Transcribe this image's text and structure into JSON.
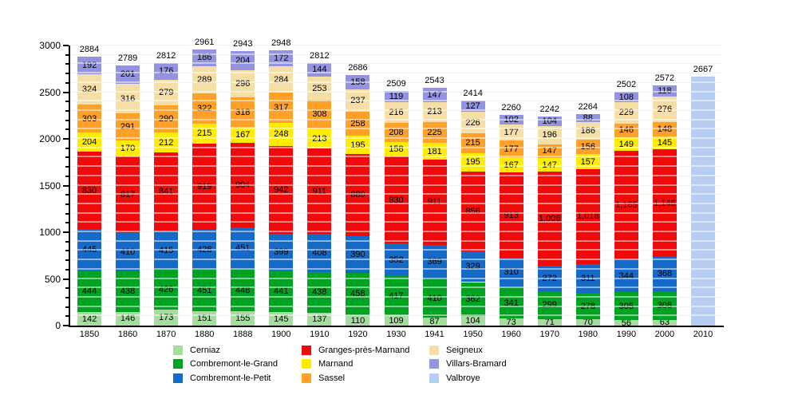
{
  "chart_data": {
    "type": "bar",
    "stacked": true,
    "title": "",
    "xlabel": "",
    "ylabel": "",
    "categories": [
      "1850",
      "1860",
      "1870",
      "1880",
      "1888",
      "1900",
      "1910",
      "1920",
      "1930",
      "1941",
      "1950",
      "1960",
      "1970",
      "1980",
      "1990",
      "2000",
      "2010"
    ],
    "totals": [
      2884,
      2789,
      2812,
      2961,
      2943,
      2948,
      2812,
      2686,
      2509,
      2543,
      2414,
      2260,
      2242,
      2264,
      2502,
      2572,
      2667
    ],
    "series": [
      {
        "name": "Cerniaz",
        "color": "#a6dca0",
        "values": [
          142,
          146,
          173,
          151,
          155,
          145,
          137,
          110,
          109,
          87,
          104,
          73,
          71,
          70,
          56,
          63,
          0
        ]
      },
      {
        "name": "Combremont-le-Grand",
        "color": "#00a221",
        "values": [
          444,
          438,
          426,
          451,
          448,
          441,
          438,
          458,
          417,
          410,
          362,
          341,
          299,
          278,
          305,
          308,
          0
        ]
      },
      {
        "name": "Combremont-le-Petit",
        "color": "#1569c7",
        "values": [
          445,
          410,
          415,
          428,
          451,
          399,
          408,
          390,
          352,
          369,
          329,
          310,
          272,
          311,
          344,
          368,
          0
        ]
      },
      {
        "name": "Granges-près-Marnand",
        "color": "#f00b0b",
        "values": [
          830,
          817,
          841,
          919,
          904,
          942,
          911,
          880,
          930,
          911,
          856,
          913,
          1006,
          1018,
          1165,
          1146,
          0
        ]
      },
      {
        "name": "Marnand",
        "color": "#ffec00",
        "values": [
          204,
          170,
          212,
          215,
          167,
          248,
          213,
          195,
          158,
          181,
          195,
          167,
          147,
          157,
          149,
          145,
          0
        ]
      },
      {
        "name": "Sassel",
        "color": "#ffa028",
        "values": [
          303,
          291,
          290,
          322,
          318,
          317,
          308,
          258,
          208,
          225,
          215,
          177,
          147,
          156,
          146,
          148,
          0
        ]
      },
      {
        "name": "Seigneux",
        "color": "#f6dfa6",
        "values": [
          324,
          316,
          279,
          289,
          296,
          284,
          253,
          237,
          216,
          213,
          226,
          177,
          196,
          186,
          229,
          276,
          0
        ]
      },
      {
        "name": "Villars-Bramard",
        "color": "#9393e1",
        "values": [
          192,
          201,
          176,
          186,
          204,
          172,
          144,
          158,
          119,
          147,
          127,
          102,
          104,
          88,
          108,
          118,
          0
        ]
      },
      {
        "name": "Valbroye",
        "color": "#b6cef2",
        "values": [
          0,
          0,
          0,
          0,
          0,
          0,
          0,
          0,
          0,
          0,
          0,
          0,
          0,
          0,
          0,
          0,
          2667
        ],
        "show_segment_labels": false
      }
    ],
    "ylim": [
      0,
      3000
    ],
    "yticks": [
      0,
      500,
      1000,
      1500,
      2000,
      2500,
      3000
    ],
    "minor_grid_step": 100,
    "grid": true,
    "legend_position": "bottom",
    "legend_columns": [
      [
        "Cerniaz",
        "Combremont-le-Grand",
        "Combremont-le-Petit"
      ],
      [
        "Granges-près-Marnand",
        "Marnand",
        "Sassel"
      ],
      [
        "Seigneux",
        "Villars-Bramard",
        "Valbroye"
      ]
    ]
  }
}
